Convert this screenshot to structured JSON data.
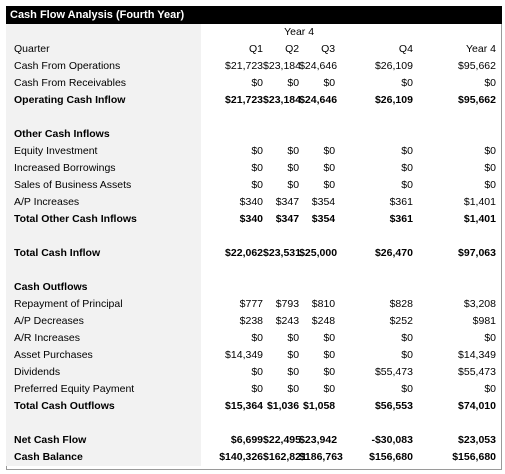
{
  "title": "Cash Flow Analysis (Fourth Year)",
  "year_label": "Year 4",
  "header": {
    "label": "Quarter",
    "cols": [
      "Q1",
      "Q2",
      "Q3",
      "Q4",
      "Year 4"
    ]
  },
  "rows": [
    {
      "label": "Cash From Operations",
      "values": [
        "$21,723",
        "$23,184",
        "$24,646",
        "$26,109",
        "$95,662"
      ],
      "bold": false
    },
    {
      "label": "Cash From Receivables",
      "values": [
        "$0",
        "$0",
        "$0",
        "$0",
        "$0"
      ],
      "bold": false
    },
    {
      "label": "Operating Cash Inflow",
      "values": [
        "$21,723",
        "$23,184",
        "$24,646",
        "$26,109",
        "$95,662"
      ],
      "bold": true
    },
    {
      "blank": true
    },
    {
      "label": "Other Cash Inflows",
      "values": [],
      "bold": true
    },
    {
      "label": "Equity Investment",
      "values": [
        "$0",
        "$0",
        "$0",
        "$0",
        "$0"
      ],
      "bold": false
    },
    {
      "label": "Increased Borrowings",
      "values": [
        "$0",
        "$0",
        "$0",
        "$0",
        "$0"
      ],
      "bold": false
    },
    {
      "label": "Sales of Business Assets",
      "values": [
        "$0",
        "$0",
        "$0",
        "$0",
        "$0"
      ],
      "bold": false
    },
    {
      "label": "A/P Increases",
      "values": [
        "$340",
        "$347",
        "$354",
        "$361",
        "$1,401"
      ],
      "bold": false
    },
    {
      "label": "Total Other Cash Inflows",
      "values": [
        "$340",
        "$347",
        "$354",
        "$361",
        "$1,401"
      ],
      "bold": true
    },
    {
      "blank": true
    },
    {
      "label": "Total Cash Inflow",
      "values": [
        "$22,062",
        "$23,531",
        "$25,000",
        "$26,470",
        "$97,063"
      ],
      "bold": true
    },
    {
      "blank": true
    },
    {
      "label": "Cash Outflows",
      "values": [],
      "bold": true
    },
    {
      "label": "Repayment of Principal",
      "values": [
        "$777",
        "$793",
        "$810",
        "$828",
        "$3,208"
      ],
      "bold": false
    },
    {
      "label": "A/P Decreases",
      "values": [
        "$238",
        "$243",
        "$248",
        "$252",
        "$981"
      ],
      "bold": false
    },
    {
      "label": "A/R Increases",
      "values": [
        "$0",
        "$0",
        "$0",
        "$0",
        "$0"
      ],
      "bold": false
    },
    {
      "label": "Asset Purchases",
      "values": [
        "$14,349",
        "$0",
        "$0",
        "$0",
        "$14,349"
      ],
      "bold": false
    },
    {
      "label": "Dividends",
      "values": [
        "$0",
        "$0",
        "$0",
        "$55,473",
        "$55,473"
      ],
      "bold": false
    },
    {
      "label": "Preferred Equity Payment",
      "values": [
        "$0",
        "$0",
        "$0",
        "$0",
        "$0"
      ],
      "bold": false
    },
    {
      "label": "Total Cash Outflows",
      "values": [
        "$15,364",
        "$1,036",
        "$1,058",
        "$56,553",
        "$74,010"
      ],
      "bold": true
    },
    {
      "blank": true
    },
    {
      "label": "Net Cash Flow",
      "values": [
        "$6,699",
        "$22,495",
        "$23,942",
        "-$30,083",
        "$23,053"
      ],
      "bold": true
    },
    {
      "label": "Cash Balance",
      "values": [
        "$140,326",
        "$162,821",
        "$186,763",
        "$156,680",
        "$156,680"
      ],
      "bold": true
    }
  ]
}
